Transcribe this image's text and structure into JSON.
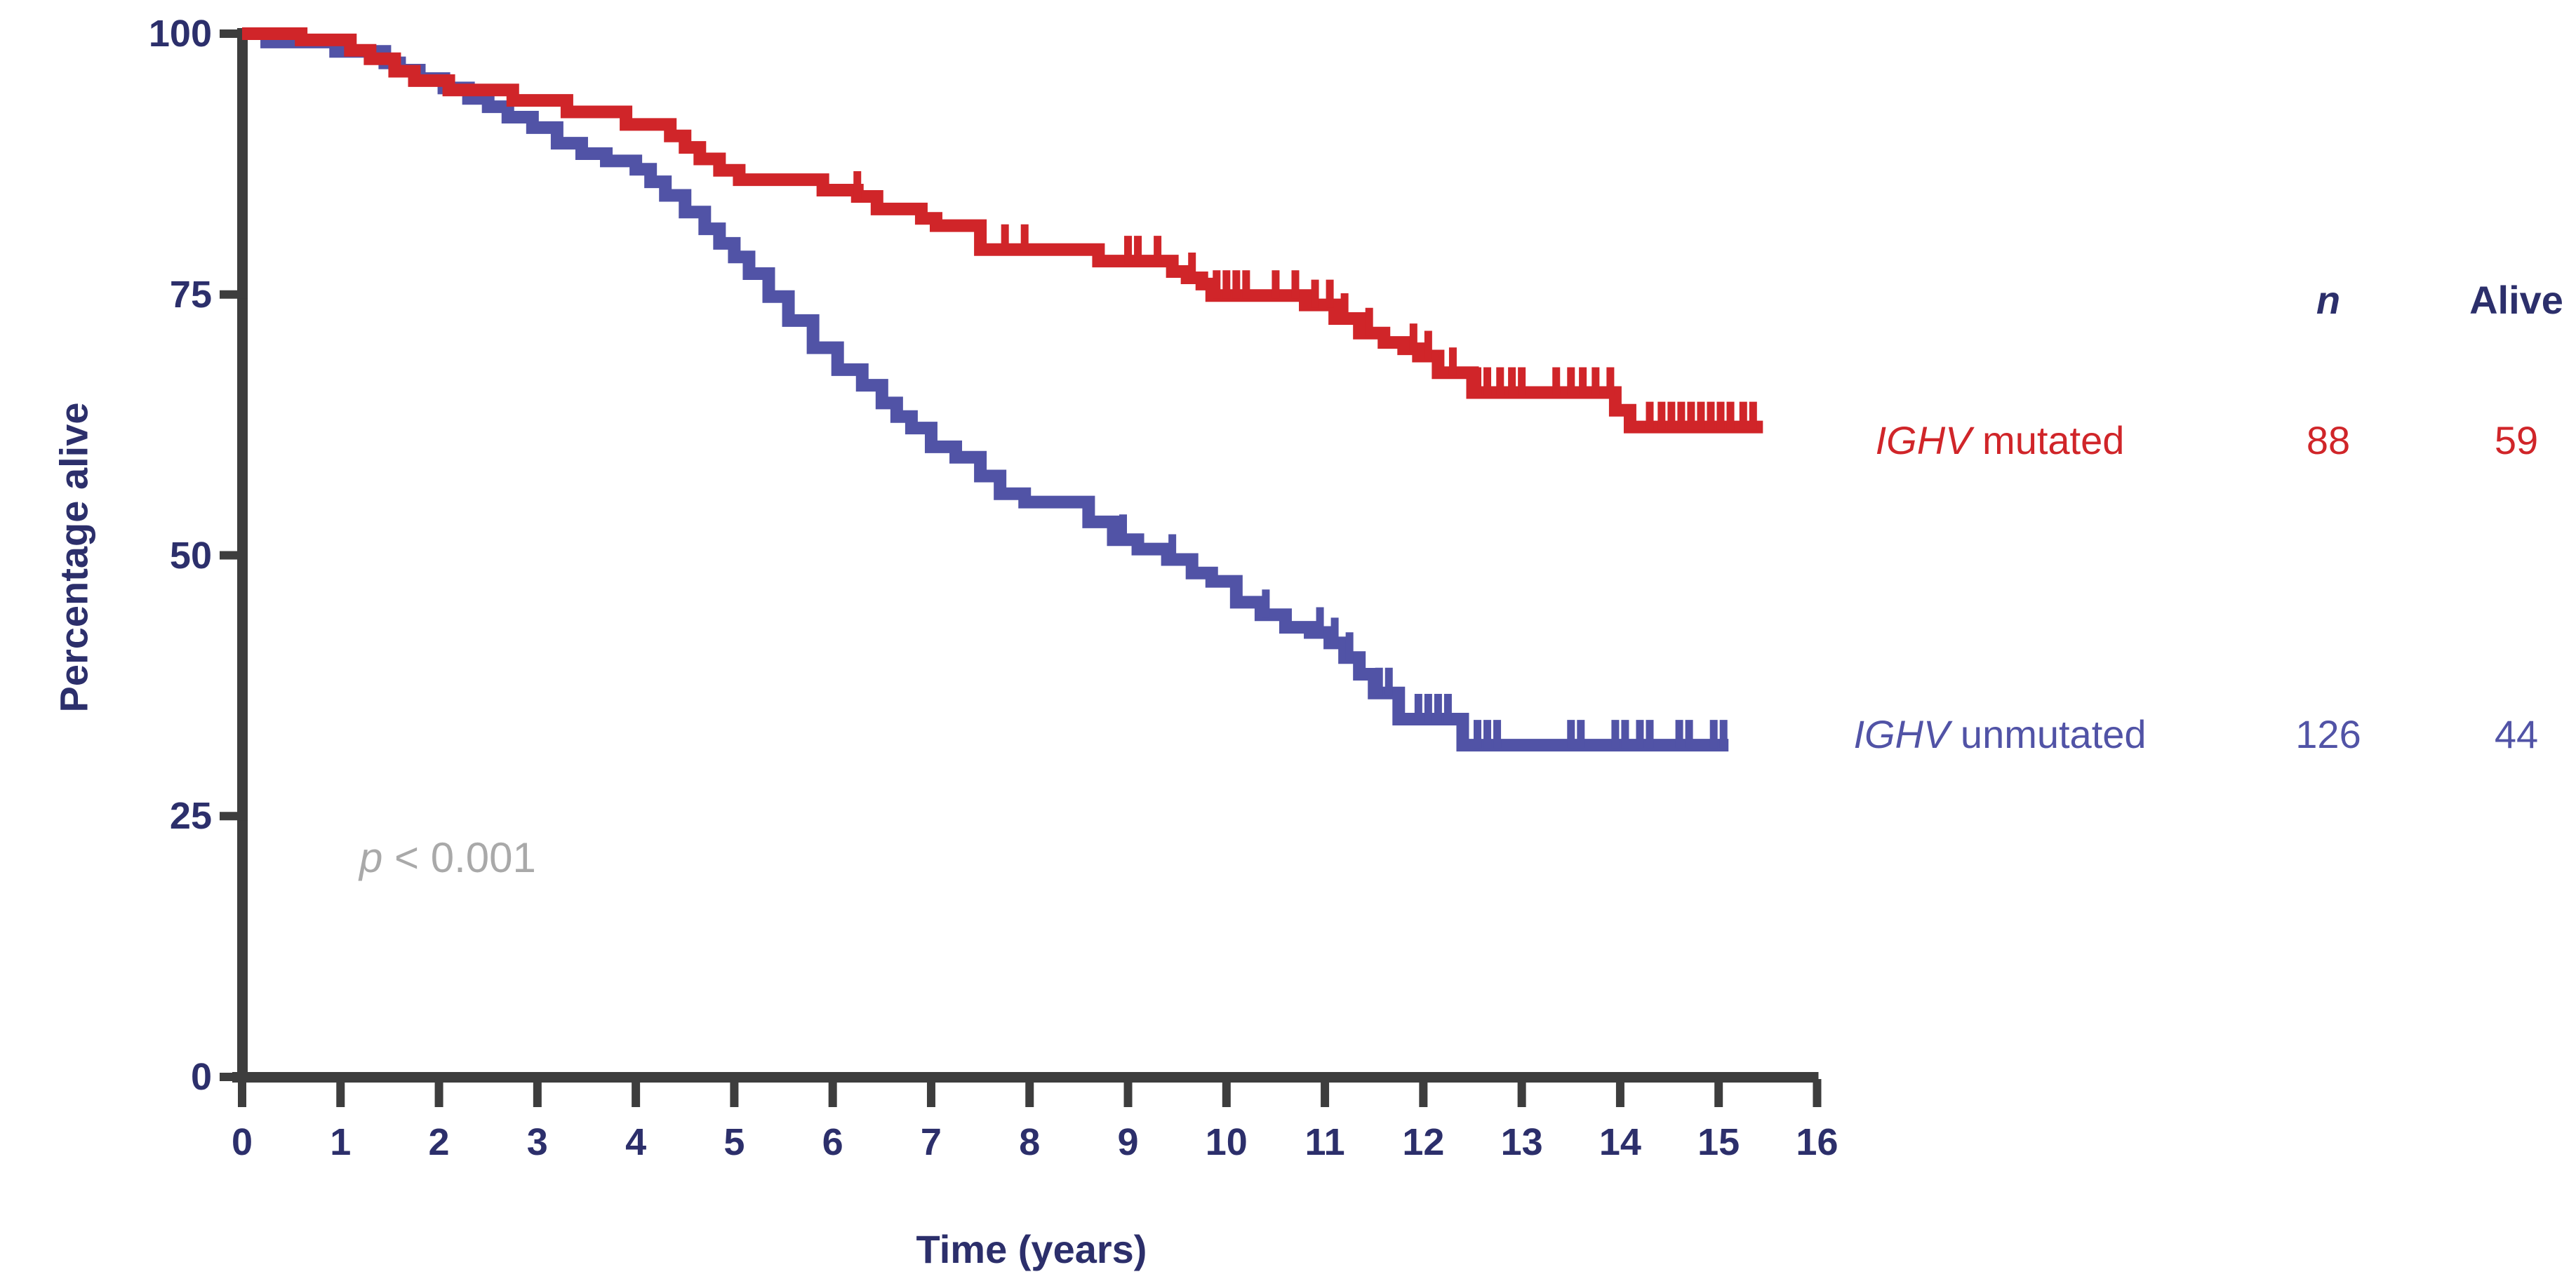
{
  "figure": {
    "y_axis_label": "Percentage alive",
    "x_axis_label": "Time (years)",
    "annotation_var": "p",
    "annotation_rest": " < 0.001",
    "colors": {
      "mutated_red": "#D02529",
      "unmutated_blue": "#5153A6",
      "text_navy": "#2C2F6B",
      "annotation_gray": "#A9A9A9",
      "axis_dark": "#3D3D3D",
      "background": "#FFFFFF"
    }
  },
  "legend": {
    "columns": {
      "n": "n",
      "alive": "Alive"
    },
    "rows": [
      {
        "gene": "IGHV",
        "suffix": " mutated",
        "n": "88",
        "alive": "59",
        "color": "#D02529",
        "row_center_y": 628
      },
      {
        "gene": "IGHV",
        "suffix": " unmutated",
        "n": "126",
        "alive": "44",
        "color": "#5153A6",
        "row_center_y": 1047
      }
    ]
  },
  "chart_data": {
    "type": "line",
    "subtype": "kaplan-meier-step",
    "title": "",
    "xlabel": "Time (years)",
    "ylabel": "Percentage alive",
    "xlim": [
      0,
      16
    ],
    "ylim": [
      0,
      100
    ],
    "x_ticks": [
      0,
      1,
      2,
      3,
      4,
      5,
      6,
      7,
      8,
      9,
      10,
      11,
      12,
      13,
      14,
      15,
      16
    ],
    "y_ticks": [
      0,
      25,
      50,
      75,
      100
    ],
    "grid": false,
    "legend_position": "right",
    "annotation": "p < 0.001",
    "series": [
      {
        "name": "IGHV mutated",
        "color": "#D02529",
        "n": 88,
        "alive": 59,
        "end_time": 15.45,
        "points": [
          [
            0,
            100
          ],
          [
            0.6,
            99.4
          ],
          [
            1.1,
            98.4
          ],
          [
            1.3,
            97.6
          ],
          [
            1.55,
            96.4
          ],
          [
            1.75,
            95.5
          ],
          [
            2.1,
            94.6
          ],
          [
            2.75,
            93.6
          ],
          [
            3.3,
            92.5
          ],
          [
            3.9,
            91.3
          ],
          [
            4.35,
            90.2
          ],
          [
            4.5,
            89.1
          ],
          [
            4.65,
            88.0
          ],
          [
            4.85,
            86.9
          ],
          [
            5.05,
            86.0
          ],
          [
            5.9,
            85.0
          ],
          [
            6.25,
            84.4
          ],
          [
            6.45,
            83.2
          ],
          [
            6.9,
            82.3
          ],
          [
            7.05,
            81.6
          ],
          [
            7.5,
            79.3
          ],
          [
            8.7,
            78.2
          ],
          [
            9.45,
            77.2
          ],
          [
            9.6,
            76.6
          ],
          [
            9.75,
            76.0
          ],
          [
            9.85,
            74.9
          ],
          [
            10.8,
            74.0
          ],
          [
            11.1,
            72.7
          ],
          [
            11.35,
            71.3
          ],
          [
            11.6,
            70.4
          ],
          [
            11.8,
            69.8
          ],
          [
            11.95,
            69.1
          ],
          [
            12.15,
            67.5
          ],
          [
            12.5,
            65.6
          ],
          [
            13.95,
            63.9
          ],
          [
            14.1,
            62.3
          ],
          [
            15.45,
            62.3
          ]
        ],
        "censor_times": [
          6.25,
          7.75,
          7.95,
          9.0,
          9.1,
          9.3,
          9.65,
          9.9,
          10.0,
          10.1,
          10.2,
          10.5,
          10.7,
          10.9,
          11.05,
          11.2,
          11.45,
          11.9,
          12.05,
          12.3,
          12.55,
          12.65,
          12.78,
          12.9,
          13.0,
          13.35,
          13.5,
          13.62,
          13.75,
          13.9,
          14.3,
          14.42,
          14.52,
          14.62,
          14.72,
          14.82,
          14.92,
          15.02,
          15.12,
          15.25,
          15.35
        ]
      },
      {
        "name": "IGHV unmutated",
        "color": "#5153A6",
        "n": 126,
        "alive": 44,
        "end_time": 15.1,
        "points": [
          [
            0,
            100
          ],
          [
            0.25,
            99.2
          ],
          [
            0.95,
            98.3
          ],
          [
            1.45,
            97.2
          ],
          [
            1.6,
            96.5
          ],
          [
            1.8,
            95.7
          ],
          [
            2.05,
            94.8
          ],
          [
            2.3,
            93.8
          ],
          [
            2.5,
            93.0
          ],
          [
            2.7,
            92.0
          ],
          [
            2.95,
            91.0
          ],
          [
            3.2,
            89.5
          ],
          [
            3.45,
            88.5
          ],
          [
            3.7,
            87.8
          ],
          [
            4.0,
            87.0
          ],
          [
            4.15,
            85.8
          ],
          [
            4.3,
            84.5
          ],
          [
            4.5,
            82.9
          ],
          [
            4.7,
            81.3
          ],
          [
            4.85,
            79.9
          ],
          [
            5.0,
            78.6
          ],
          [
            5.15,
            77.0
          ],
          [
            5.35,
            74.8
          ],
          [
            5.55,
            72.5
          ],
          [
            5.8,
            69.9
          ],
          [
            6.05,
            67.8
          ],
          [
            6.3,
            66.3
          ],
          [
            6.5,
            64.6
          ],
          [
            6.65,
            63.3
          ],
          [
            6.8,
            62.2
          ],
          [
            7.0,
            60.4
          ],
          [
            7.25,
            59.4
          ],
          [
            7.5,
            57.6
          ],
          [
            7.7,
            55.9
          ],
          [
            7.95,
            55.1
          ],
          [
            8.6,
            53.2
          ],
          [
            8.85,
            51.5
          ],
          [
            9.1,
            50.6
          ],
          [
            9.4,
            49.6
          ],
          [
            9.65,
            48.3
          ],
          [
            9.85,
            47.5
          ],
          [
            10.1,
            45.5
          ],
          [
            10.35,
            44.3
          ],
          [
            10.6,
            43.1
          ],
          [
            10.85,
            42.6
          ],
          [
            11.05,
            41.6
          ],
          [
            11.2,
            40.2
          ],
          [
            11.35,
            38.6
          ],
          [
            11.5,
            36.8
          ],
          [
            11.75,
            34.3
          ],
          [
            12.4,
            31.8
          ],
          [
            15.1,
            31.8
          ]
        ],
        "censor_times": [
          8.95,
          9.45,
          10.4,
          10.95,
          11.1,
          11.25,
          11.55,
          11.65,
          11.95,
          12.05,
          12.15,
          12.25,
          12.55,
          12.65,
          12.75,
          13.5,
          13.6,
          13.95,
          14.05,
          14.2,
          14.3,
          14.6,
          14.7,
          14.95,
          15.05
        ]
      }
    ]
  }
}
